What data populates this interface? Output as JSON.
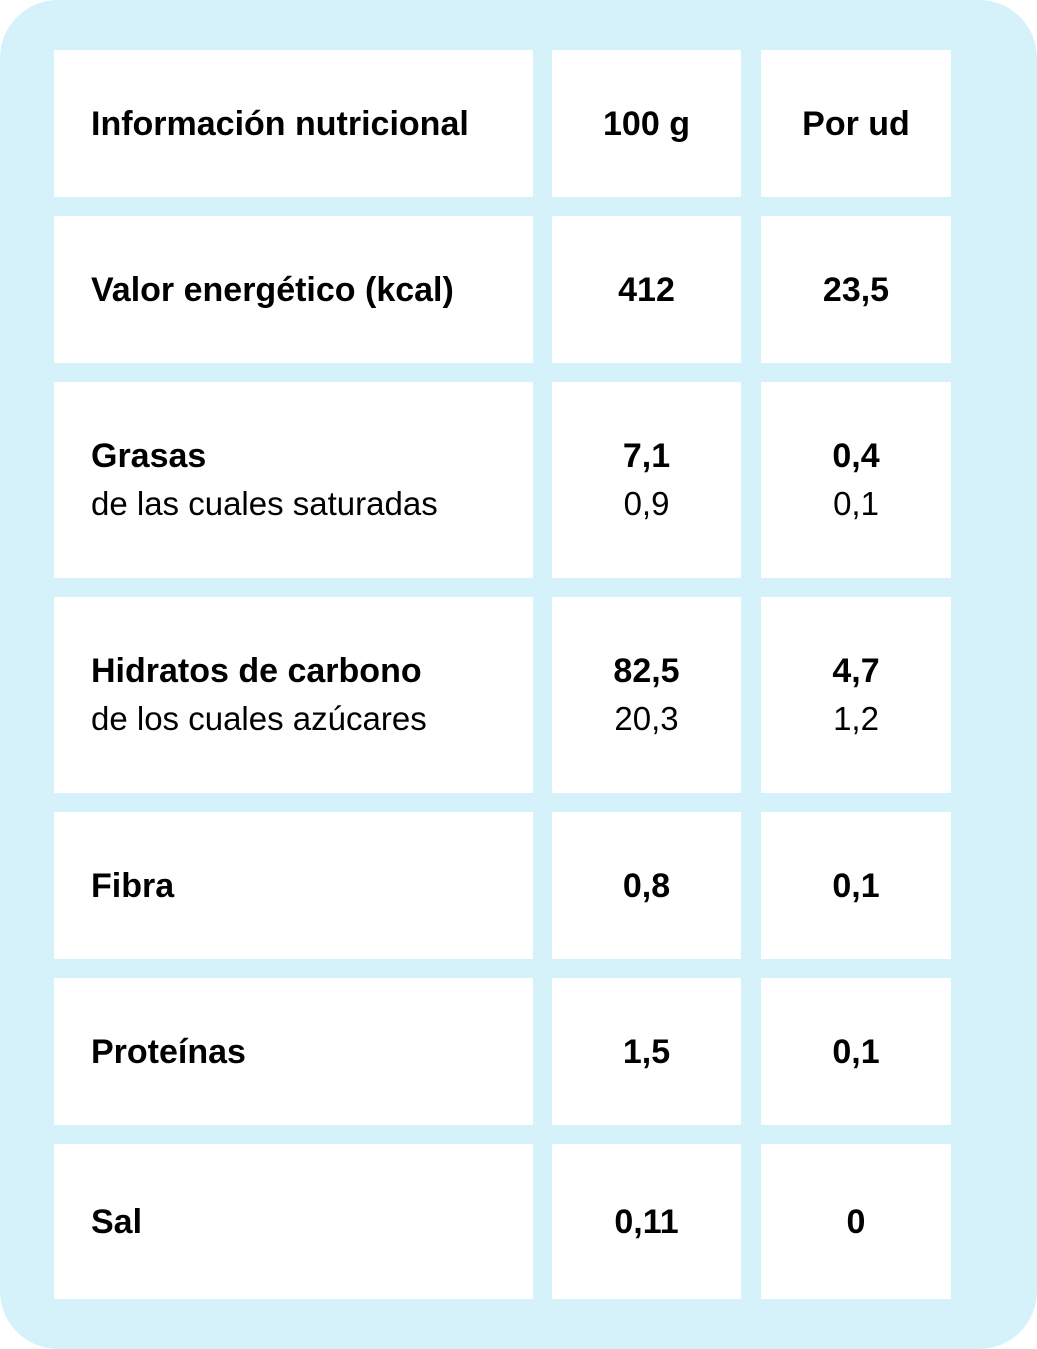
{
  "colors": {
    "panel_background": "#d5f1f9",
    "cell_background": "#ffffff",
    "text": "#000000"
  },
  "table": {
    "header": {
      "label": "Información nutricional",
      "col_100g": "100 g",
      "col_unit": "Por ud"
    },
    "rows": [
      {
        "label": "Valor energético (kcal)",
        "v100": "412",
        "vunit": "23,5"
      },
      {
        "label": "Grasas",
        "sub_label": "de las cuales saturadas",
        "v100": "7,1",
        "sub_v100": "0,9",
        "vunit": "0,4",
        "sub_vunit": "0,1"
      },
      {
        "label": "Hidratos de carbono",
        "sub_label": "de los cuales azúcares",
        "v100": "82,5",
        "sub_v100": "20,3",
        "vunit": "4,7",
        "sub_vunit": "1,2"
      },
      {
        "label": "Fibra",
        "v100": "0,8",
        "vunit": "0,1"
      },
      {
        "label": "Proteínas",
        "v100": "1,5",
        "vunit": "0,1"
      },
      {
        "label": "Sal",
        "v100": "0,11",
        "vunit": "0"
      }
    ]
  }
}
